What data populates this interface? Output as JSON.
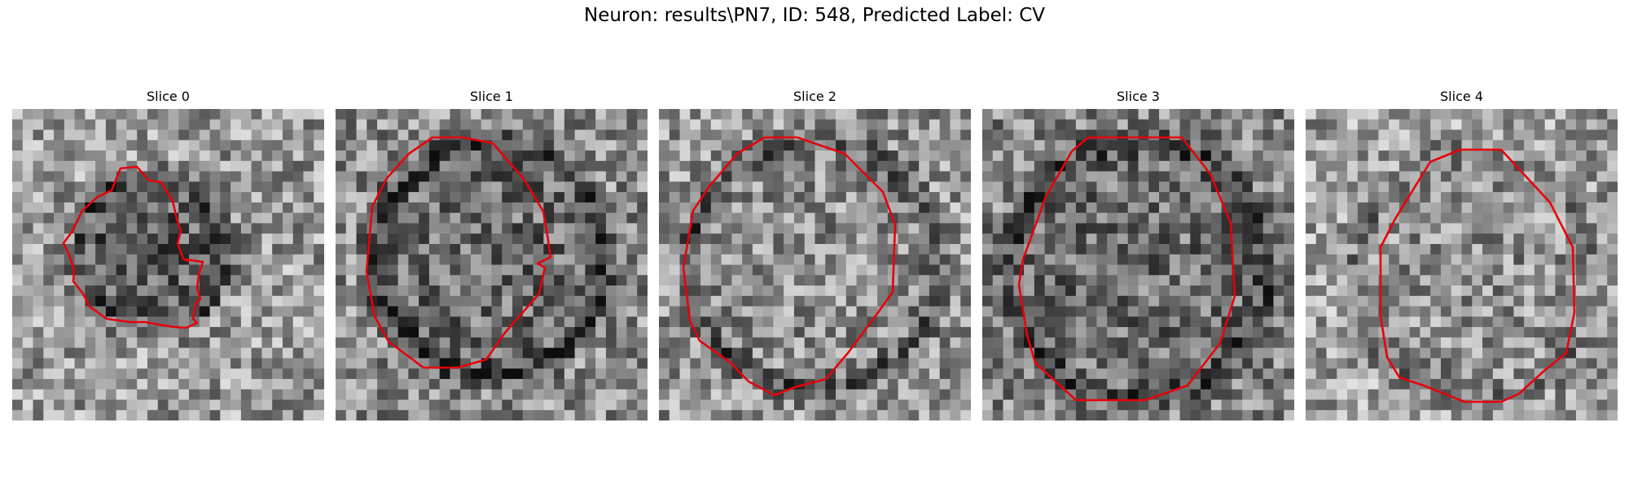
{
  "figure": {
    "title": "Neuron: results\\PN7, ID: 548, Predicted Label: CV"
  },
  "panels": [
    {
      "title": "Slice 0"
    },
    {
      "title": "Slice 1"
    },
    {
      "title": "Slice 2"
    },
    {
      "title": "Slice 3"
    },
    {
      "title": "Slice 4"
    }
  ],
  "colors": {
    "contour": "#e8000b",
    "background": "#ffffff"
  }
}
